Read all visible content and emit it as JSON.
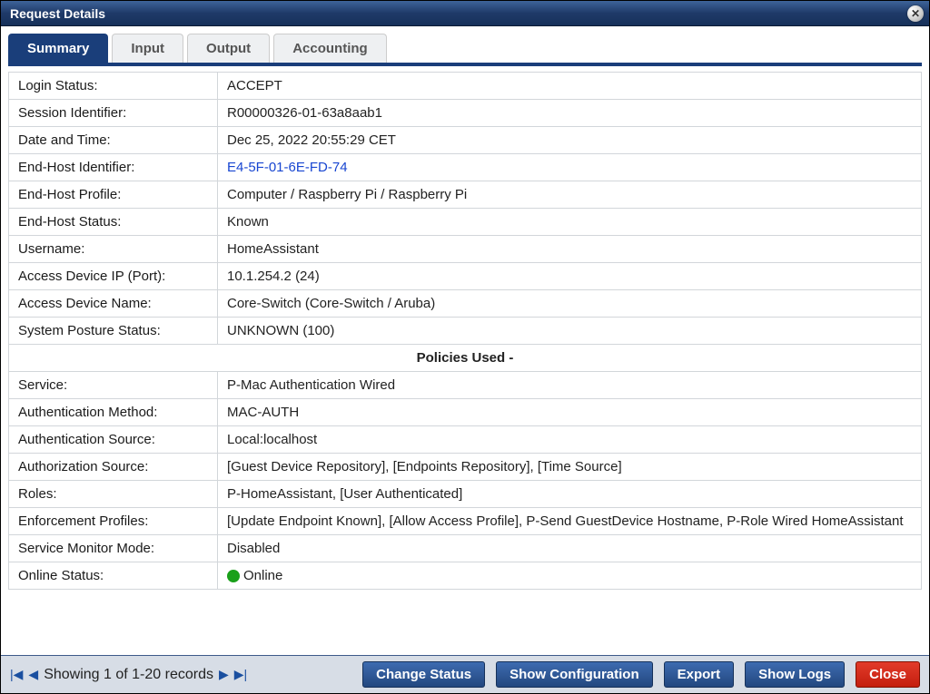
{
  "window": {
    "title": "Request Details"
  },
  "tabs": [
    {
      "label": "Summary",
      "active": true
    },
    {
      "label": "Input",
      "active": false
    },
    {
      "label": "Output",
      "active": false
    },
    {
      "label": "Accounting",
      "active": false
    }
  ],
  "rows_top": [
    {
      "label": "Login Status:",
      "value": "ACCEPT",
      "link": false
    },
    {
      "label": "Session Identifier:",
      "value": "R00000326-01-63a8aab1",
      "link": false
    },
    {
      "label": "Date and Time:",
      "value": "Dec 25, 2022 20:55:29 CET",
      "link": false
    },
    {
      "label": "End-Host Identifier:",
      "value": "E4-5F-01-6E-FD-74",
      "link": true
    },
    {
      "label": "End-Host Profile:",
      "value": "Computer / Raspberry Pi / Raspberry Pi",
      "link": false
    },
    {
      "label": "End-Host Status:",
      "value": "Known",
      "link": false
    },
    {
      "label": "Username:",
      "value": "HomeAssistant",
      "link": false
    },
    {
      "label": "Access Device IP (Port):",
      "value": "10.1.254.2 (24)",
      "link": false
    },
    {
      "label": "Access Device Name:",
      "value": "Core-Switch (Core-Switch / Aruba)",
      "link": false
    },
    {
      "label": "System Posture Status:",
      "value": "UNKNOWN (100)",
      "link": false
    }
  ],
  "section": {
    "title": "Policies Used -"
  },
  "rows_bottom": [
    {
      "label": "Service:",
      "value": "P-Mac Authentication Wired"
    },
    {
      "label": "Authentication Method:",
      "value": "MAC-AUTH"
    },
    {
      "label": "Authentication Source:",
      "value": "Local:localhost"
    },
    {
      "label": "Authorization Source:",
      "value": "[Guest Device Repository], [Endpoints Repository], [Time Source]"
    },
    {
      "label": "Roles:",
      "value": "P-HomeAssistant, [User Authenticated]"
    },
    {
      "label": "Enforcement Profiles:",
      "value": "[Update Endpoint Known], [Allow Access Profile], P-Send GuestDevice Hostname, P-Role Wired HomeAssistant"
    },
    {
      "label": "Service Monitor Mode:",
      "value": "Disabled"
    },
    {
      "label": "Online Status:",
      "value": "Online",
      "status": true
    }
  ],
  "pager": {
    "text": "Showing 1 of 1-20 records"
  },
  "buttons": {
    "change_status": "Change Status",
    "show_config": "Show Configuration",
    "export": "Export",
    "show_logs": "Show Logs",
    "close": "Close"
  },
  "colors": {
    "header_bg_top": "#3d6399",
    "header_bg_bottom": "#16315a",
    "tab_active_bg": "#1a3e7a",
    "tab_inactive_bg": "#eef0f2",
    "section_bg": "#d9dcdf",
    "border": "#d2d6da",
    "link": "#1846d1",
    "footer_bg": "#d7dde6",
    "btn_bg_top": "#3d6bb0",
    "btn_bg_bottom": "#23477f",
    "close_btn_bg_top": "#e23b2a",
    "close_btn_bg_bottom": "#c41e0e",
    "status_dot": "#1aa01a"
  }
}
